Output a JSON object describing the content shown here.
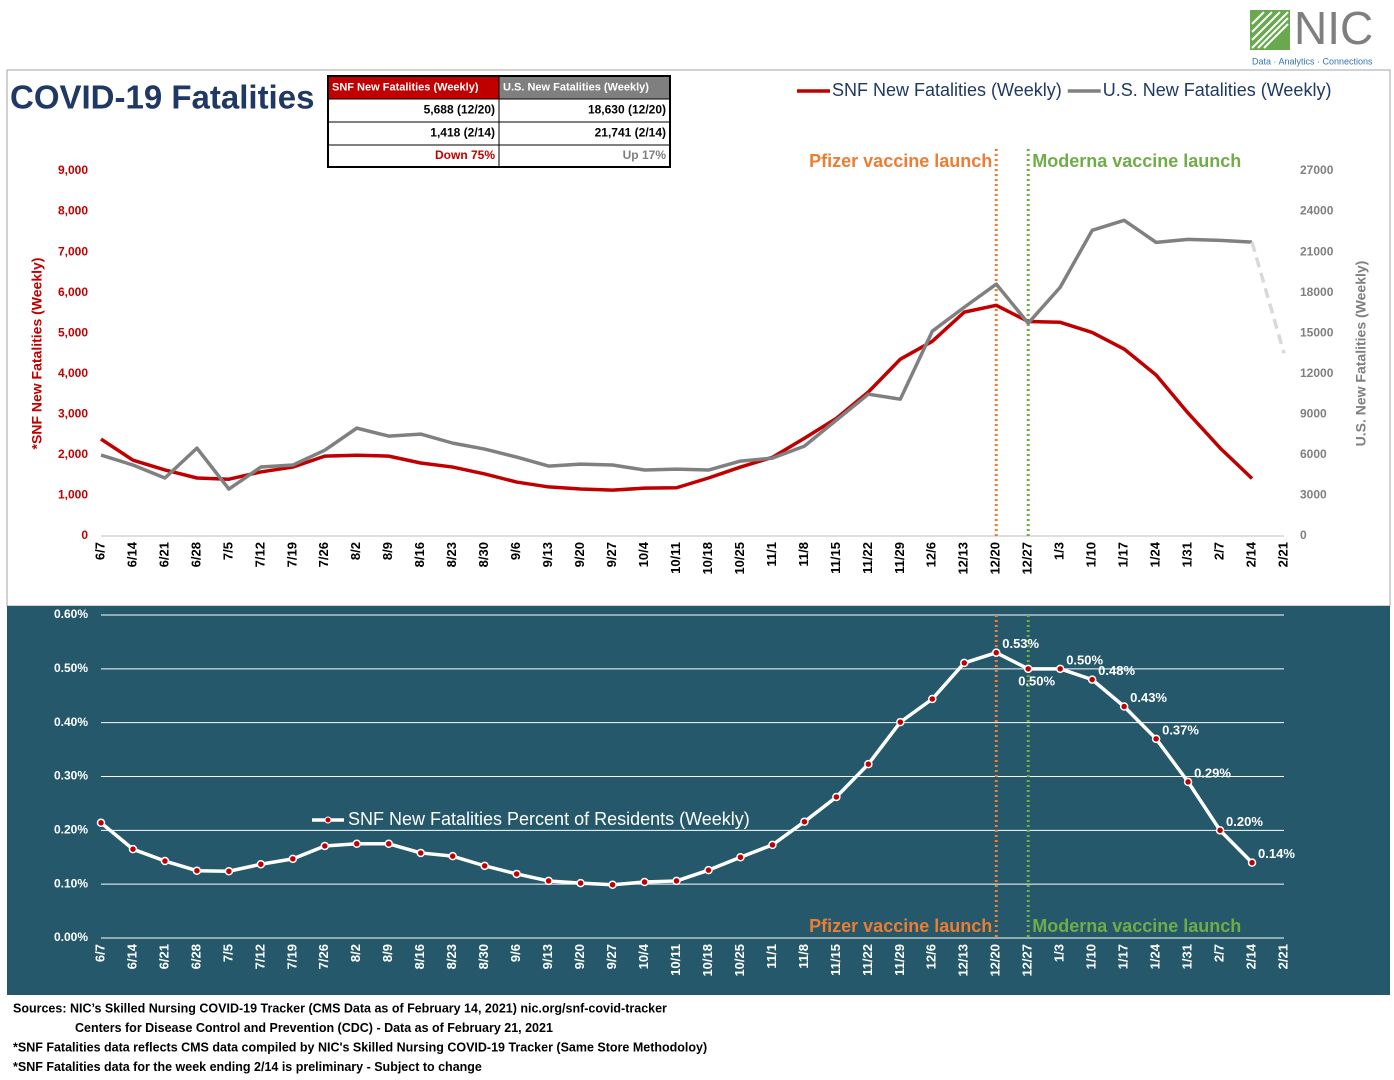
{
  "logo": {
    "name": "NIC",
    "tagline": "Data · Analytics · Connections"
  },
  "title": "COVID-19 Fatalities",
  "table": {
    "header": [
      "SNF New Fatalities (Weekly)",
      "U.S. New Fatalities (Weekly)"
    ],
    "rows": [
      [
        "5,688 (12/20)",
        "18,630 (12/20)"
      ],
      [
        "1,418 (2/14)",
        "21,741 (2/14)"
      ],
      [
        "Down 75%",
        "Up 17%"
      ]
    ]
  },
  "chart_data": [
    {
      "type": "line",
      "categories": [
        "6/7",
        "6/14",
        "6/21",
        "6/28",
        "7/5",
        "7/12",
        "7/19",
        "7/26",
        "8/2",
        "8/9",
        "8/16",
        "8/23",
        "8/30",
        "9/6",
        "9/13",
        "9/20",
        "9/27",
        "10/4",
        "10/11",
        "10/18",
        "10/25",
        "11/1",
        "11/8",
        "11/15",
        "11/22",
        "11/29",
        "12/6",
        "12/13",
        "12/20",
        "12/27",
        "1/3",
        "1/10",
        "1/17",
        "1/24",
        "1/31",
        "2/7",
        "2/14",
        "2/21"
      ],
      "y_label": "*SNF New Fatalities (Weekly)",
      "y2_label": "U.S. New Fatalities (Weekly)",
      "ylim": [
        0,
        9000
      ],
      "yticks": [
        0,
        {
          "value": 1000,
          "label": "1,000"
        },
        {
          "value": 2000,
          "label": "2,000"
        },
        {
          "value": 3000,
          "label": "3,000"
        },
        {
          "value": 4000,
          "label": "4,000"
        },
        {
          "value": 5000,
          "label": "5,000"
        },
        {
          "value": 6000,
          "label": "6,000"
        },
        {
          "value": 7000,
          "label": "7,000"
        },
        {
          "value": 8000,
          "label": "8,000"
        },
        {
          "value": 9000,
          "label": "9,000"
        }
      ],
      "y2lim": [
        0,
        27000
      ],
      "y2ticks": [
        0,
        3000,
        6000,
        9000,
        12000,
        15000,
        18000,
        21000,
        24000,
        27000
      ],
      "grid": false,
      "legend": "top-right",
      "series": [
        {
          "name": "SNF New Fatalities (Weekly)",
          "color": "#c00000",
          "axis": "y",
          "values": [
            2390,
            1870,
            1630,
            1430,
            1400,
            1580,
            1700,
            1970,
            1990,
            1970,
            1800,
            1700,
            1530,
            1330,
            1210,
            1160,
            1130,
            1180,
            1190,
            1430,
            1700,
            1940,
            2410,
            2900,
            3550,
            4360,
            4800,
            5520,
            5688,
            5290,
            5270,
            5020,
            4610,
            3970,
            3030,
            2170,
            1418,
            null
          ]
        },
        {
          "name": "U.S. New Fatalities (Weekly)",
          "color": "#808080",
          "axis": "y2",
          "dash_last_segment": true,
          "values": [
            5990,
            5250,
            4290,
            6500,
            3470,
            5100,
            5250,
            6350,
            7980,
            7390,
            7540,
            6870,
            6430,
            5840,
            5170,
            5320,
            5250,
            4880,
            4950,
            4880,
            5540,
            5760,
            6650,
            8570,
            10490,
            10120,
            15150,
            16920,
            18630,
            15740,
            18400,
            22610,
            23350,
            21720,
            21940,
            21870,
            21741,
            13520
          ]
        }
      ],
      "annotations": [
        {
          "text": "Pfizer vaccine launch",
          "x": "12/20",
          "color": "#ed7d31"
        },
        {
          "text": "Moderna vaccine launch",
          "x": "12/27",
          "color": "#70ad47"
        }
      ]
    },
    {
      "type": "line",
      "categories": [
        "6/7",
        "6/14",
        "6/21",
        "6/28",
        "7/5",
        "7/12",
        "7/19",
        "7/26",
        "8/2",
        "8/9",
        "8/16",
        "8/23",
        "8/30",
        "9/6",
        "9/13",
        "9/20",
        "9/27",
        "10/4",
        "10/11",
        "10/18",
        "10/25",
        "11/1",
        "11/8",
        "11/15",
        "11/22",
        "11/29",
        "12/6",
        "12/13",
        "12/20",
        "12/27",
        "1/3",
        "1/10",
        "1/17",
        "1/24",
        "1/31",
        "2/7",
        "2/14",
        "2/21"
      ],
      "ylim": [
        0,
        0.6
      ],
      "yticks": [
        {
          "value": 0,
          "label": "0.00%"
        },
        {
          "value": 0.1,
          "label": "0.10%"
        },
        {
          "value": 0.2,
          "label": "0.20%"
        },
        {
          "value": 0.3,
          "label": "0.30%"
        },
        {
          "value": 0.4,
          "label": "0.40%"
        },
        {
          "value": 0.5,
          "label": "0.50%"
        },
        {
          "value": 0.6,
          "label": "0.60%"
        }
      ],
      "grid": true,
      "legend": "middle-left",
      "series": [
        {
          "name": "SNF New Fatalities Percent of Residents (Weekly)",
          "color": "#ffffff",
          "marker_color": "#c00000",
          "values": [
            0.214,
            0.165,
            0.143,
            0.125,
            0.124,
            0.137,
            0.147,
            0.171,
            0.175,
            0.175,
            0.158,
            0.152,
            0.134,
            0.119,
            0.106,
            0.102,
            0.099,
            0.104,
            0.106,
            0.126,
            0.15,
            0.173,
            0.216,
            0.262,
            0.323,
            0.401,
            0.444,
            0.511,
            0.53,
            0.5,
            0.5,
            0.48,
            0.43,
            0.37,
            0.29,
            0.2,
            0.14,
            null
          ],
          "value_labels": [
            null,
            null,
            null,
            null,
            null,
            null,
            null,
            null,
            null,
            null,
            null,
            null,
            null,
            null,
            null,
            null,
            null,
            null,
            null,
            null,
            null,
            null,
            null,
            null,
            null,
            null,
            null,
            null,
            "0.53%",
            "0.50%",
            "0.50%",
            "0.48%",
            "0.43%",
            "0.37%",
            "0.29%",
            "0.20%",
            "0.14%",
            null
          ]
        }
      ],
      "annotations": [
        {
          "text": "Pfizer vaccine launch",
          "x": "12/20",
          "color": "#ed7d31"
        },
        {
          "text": "Moderna vaccine launch",
          "x": "12/27",
          "color": "#70ad47"
        }
      ]
    }
  ],
  "sources": [
    "Sources:  NIC’s Skilled Nursing COVID-19 Tracker (CMS Data as of February 14, 2021)   nic.org/snf-covid-tracker",
    "Centers for Disease Control and Prevention (CDC) - Data as of February 21, 2021",
    "*SNF Fatalities data reflects CMS data compiled by NIC's Skilled Nursing COVID-19 Tracker (Same Store Methodoloy)",
    "*SNF Fatalities data for the week ending 2/14 is  preliminary - Subject to change"
  ]
}
